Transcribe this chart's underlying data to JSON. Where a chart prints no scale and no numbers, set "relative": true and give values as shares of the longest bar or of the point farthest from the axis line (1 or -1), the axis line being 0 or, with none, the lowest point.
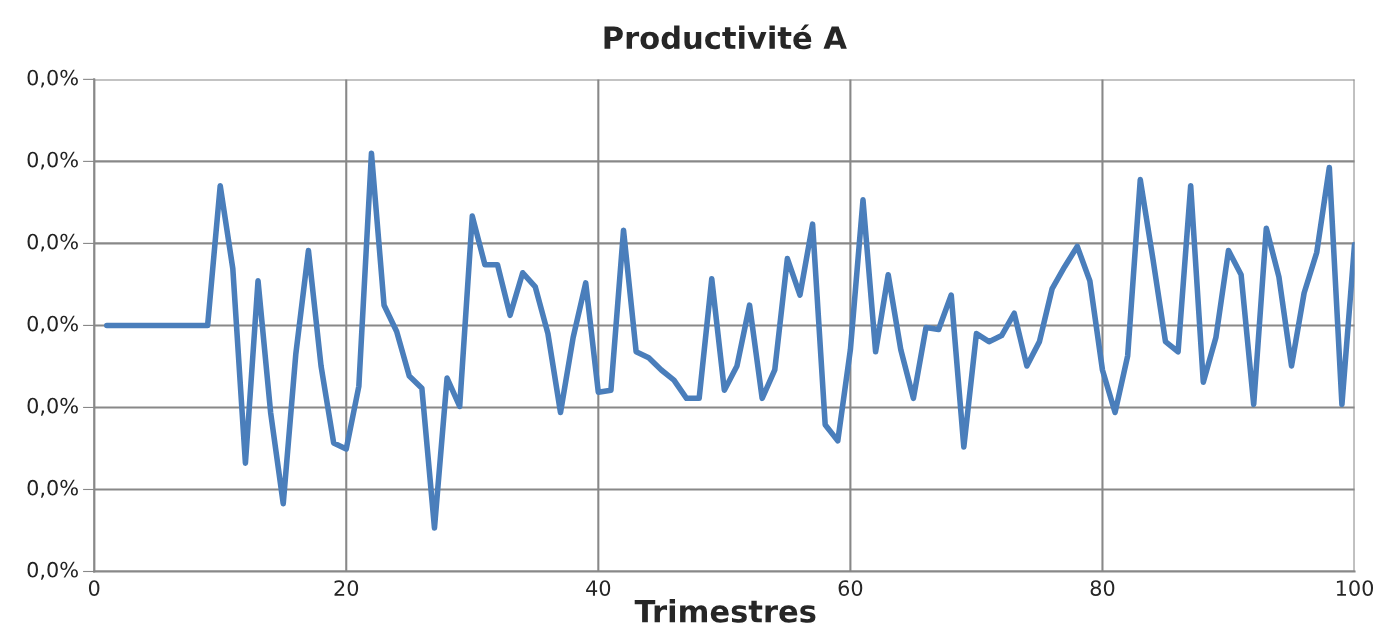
{
  "chart_data": {
    "type": "line",
    "title": "Productivité A",
    "xlabel": "Trimestres",
    "relative": true,
    "x": [
      1,
      2,
      3,
      4,
      5,
      6,
      7,
      8,
      9,
      10,
      11,
      12,
      13,
      14,
      15,
      16,
      17,
      18,
      19,
      20,
      21,
      22,
      23,
      24,
      25,
      26,
      27,
      28,
      29,
      30,
      31,
      32,
      33,
      34,
      35,
      36,
      37,
      38,
      39,
      40,
      41,
      42,
      43,
      44,
      45,
      46,
      47,
      48,
      49,
      50,
      51,
      52,
      53,
      54,
      55,
      56,
      57,
      58,
      59,
      60,
      61,
      62,
      63,
      64,
      65,
      66,
      67,
      68,
      69,
      70,
      71,
      72,
      73,
      74,
      75,
      76,
      77,
      78,
      79,
      80,
      81,
      82,
      83,
      84,
      85,
      86,
      87,
      88,
      89,
      90,
      91,
      92,
      93,
      94,
      95,
      96,
      97,
      98,
      99,
      100
    ],
    "series": [
      {
        "color": "#4a7ebb",
        "values": [
          0,
          0,
          0,
          0,
          0,
          0,
          0,
          0,
          0,
          0.69,
          0.28,
          -0.68,
          0.22,
          -0.43,
          -0.88,
          -0.14,
          0.37,
          -0.2,
          -0.58,
          -0.61,
          -0.3,
          0.85,
          0.1,
          -0.03,
          -0.25,
          -0.31,
          -1,
          -0.26,
          -0.4,
          0.54,
          0.3,
          0.3,
          0.05,
          0.26,
          0.19,
          -0.04,
          -0.43,
          -0.06,
          0.21,
          -0.33,
          -0.32,
          0.47,
          -0.13,
          -0.16,
          -0.22,
          -0.27,
          -0.36,
          -0.36,
          0.23,
          -0.32,
          -0.2,
          0.1,
          -0.36,
          -0.22,
          0.33,
          0.15,
          0.5,
          -0.49,
          -0.57,
          -0.12,
          0.62,
          -0.13,
          0.25,
          -0.12,
          -0.36,
          -0.01,
          -0.02,
          0.15,
          -0.6,
          -0.04,
          -0.08,
          -0.05,
          0.06,
          -0.2,
          -0.08,
          0.18,
          0.29,
          0.39,
          0.22,
          -0.22,
          -0.43,
          -0.15,
          0.72,
          0.33,
          -0.08,
          -0.13,
          0.69,
          -0.28,
          -0.06,
          0.37,
          0.25,
          -0.39,
          0.48,
          0.24,
          -0.2,
          0.16,
          0.36,
          0.78,
          -0.39,
          0.4
        ]
      }
    ],
    "xlim": [
      0,
      100
    ],
    "xticks": [
      0,
      20,
      40,
      60,
      80,
      100
    ],
    "annotations": [
      "0,0%",
      "0,0%",
      "0,0%",
      "0,0%",
      "0,0%",
      "0,0%",
      "0,0%"
    ],
    "grid": true,
    "line_style": "solid",
    "marker": "none"
  }
}
